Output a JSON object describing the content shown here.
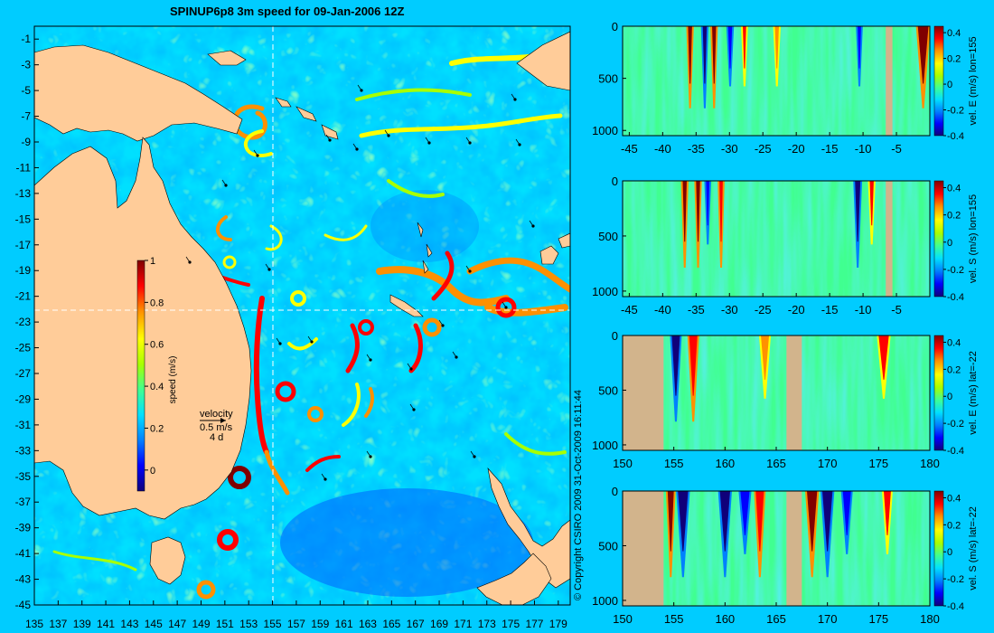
{
  "colors": {
    "background": "#00ccff",
    "land": "#ffcc99",
    "section_land": "#d2b48c",
    "colormap": [
      "#10007a",
      "#0000ff",
      "#0080ff",
      "#00e0ff",
      "#40ff90",
      "#a8ff00",
      "#ffff00",
      "#ff9000",
      "#ff0000",
      "#800000"
    ]
  },
  "map": {
    "title": "SPINUP6p8 3m speed for 09-Jan-2006 12Z",
    "xticks": [
      "135",
      "137",
      "139",
      "141",
      "143",
      "145",
      "147",
      "149",
      "151",
      "153",
      "155",
      "157",
      "159",
      "161",
      "163",
      "165",
      "167",
      "169",
      "171",
      "173",
      "175",
      "177",
      "179"
    ],
    "yticks": [
      "-1",
      "-3",
      "-5",
      "-7",
      "-9",
      "-11",
      "-13",
      "-15",
      "-17",
      "-19",
      "-21",
      "-23",
      "-25",
      "-27",
      "-29",
      "-31",
      "-33",
      "-35",
      "-37",
      "-39",
      "-41",
      "-43",
      "-45"
    ],
    "colorbar_label": "speed (m/s)",
    "colorbar_ticks": [
      "1",
      "0.8",
      "0.6",
      "0.4",
      "0.2",
      "0"
    ],
    "velocity_label": "velocity",
    "velocity_scale": "0.5 m/s",
    "velocity_days": "4 d",
    "copyright": "© Copyright CSIRO 2009    31-Oct-2009 16:11:44"
  },
  "panels": [
    {
      "ylabel": "vel. E (m/s) lon=155",
      "xticks": [
        "-45",
        "-40",
        "-35",
        "-30",
        "-25",
        "-20",
        "-15",
        "-10",
        "-5"
      ],
      "yticks": [
        "0",
        "500",
        "1000"
      ],
      "cbticks": [
        "0.4",
        "0.2",
        "0",
        "-0.2",
        "-0.4"
      ]
    },
    {
      "ylabel": "vel. S (m/s) lon=155",
      "xticks": [
        "-45",
        "-40",
        "-35",
        "-30",
        "-25",
        "-20",
        "-15",
        "-10",
        "-5"
      ],
      "yticks": [
        "0",
        "500",
        "1000"
      ],
      "cbticks": [
        "0.4",
        "0.2",
        "0",
        "-0.2",
        "-0.4"
      ]
    },
    {
      "ylabel": "vel. E (m/s) lat=-22",
      "xticks": [
        "150",
        "155",
        "160",
        "165",
        "170",
        "175",
        "180"
      ],
      "yticks": [
        "0",
        "500",
        "1000"
      ],
      "cbticks": [
        "0.4",
        "0.2",
        "0",
        "-0.2",
        "-0.4"
      ]
    },
    {
      "ylabel": "vel. S (m/s) lat=-22",
      "xticks": [
        "150",
        "155",
        "160",
        "165",
        "170",
        "175",
        "180"
      ],
      "yticks": [
        "0",
        "500",
        "1000"
      ],
      "cbticks": [
        "0.4",
        "0.2",
        "0",
        "-0.2",
        "-0.4"
      ]
    }
  ],
  "chart_data": [
    {
      "type": "heatmap",
      "title": "SPINUP6p8 3m speed for 09-Jan-2006 12Z",
      "xlabel": "",
      "ylabel": "",
      "xlim": [
        135,
        180
      ],
      "ylim": [
        -45,
        0
      ],
      "colorbar": {
        "label": "speed (m/s)",
        "range": [
          -0.1,
          1
        ]
      },
      "crosshair": {
        "lon": 155,
        "lat": -22
      },
      "velocity_key": {
        "speed": "0.5 m/s",
        "duration": "4 d"
      }
    },
    {
      "type": "heatmap",
      "ylabel": "vel. E (m/s) lon=155",
      "xlim": [
        -46,
        0
      ],
      "ylim": [
        1050,
        0
      ],
      "colorbar": {
        "range": [
          -0.4,
          0.45
        ]
      },
      "bands": [
        {
          "x": [
            -36.2,
            -35.6
          ],
          "v": 0.45
        },
        {
          "x": [
            -32.6,
            -32.0
          ],
          "v": 0.45
        },
        {
          "x": [
            -34.0,
            -33.4
          ],
          "v": -0.4
        },
        {
          "x": [
            -30.2,
            -29.6
          ],
          "v": -0.35
        },
        {
          "x": [
            -28.0,
            -27.5
          ],
          "v": 0.35
        },
        {
          "x": [
            -23.2,
            -22.6
          ],
          "v": 0.3
        },
        {
          "x": [
            -10.8,
            -10.3
          ],
          "v": -0.35
        },
        {
          "x": [
            -1.8,
            -0.2
          ],
          "v": 0.45
        }
      ],
      "land": [
        [
          -6.6,
          -5.6
        ]
      ]
    },
    {
      "type": "heatmap",
      "ylabel": "vel. S (m/s) lon=155",
      "xlim": [
        -46,
        0
      ],
      "ylim": [
        1050,
        0
      ],
      "colorbar": {
        "range": [
          -0.4,
          0.45
        ]
      },
      "bands": [
        {
          "x": [
            -37.0,
            -36.4
          ],
          "v": 0.45
        },
        {
          "x": [
            -35.0,
            -34.4
          ],
          "v": 0.45
        },
        {
          "x": [
            -33.5,
            -33.0
          ],
          "v": -0.3
        },
        {
          "x": [
            -31.5,
            -31.0
          ],
          "v": 0.4
        },
        {
          "x": [
            -11.2,
            -10.4
          ],
          "v": -0.4
        },
        {
          "x": [
            -9.0,
            -8.4
          ],
          "v": 0.35
        }
      ],
      "land": [
        [
          -6.6,
          -5.6
        ]
      ]
    },
    {
      "type": "heatmap",
      "ylabel": "vel. E (m/s) lat=-22",
      "xlim": [
        150,
        180
      ],
      "ylim": [
        1050,
        0
      ],
      "colorbar": {
        "range": [
          -0.4,
          0.45
        ]
      },
      "bands": [
        {
          "x": [
            154.8,
            155.6
          ],
          "v": -0.4
        },
        {
          "x": [
            156.5,
            157.3
          ],
          "v": 0.4
        },
        {
          "x": [
            163.5,
            164.3
          ],
          "v": 0.3
        },
        {
          "x": [
            175.0,
            176.0
          ],
          "v": 0.35
        }
      ],
      "land": [
        [
          150,
          154.0
        ],
        [
          166.0,
          167.5
        ]
      ]
    },
    {
      "type": "heatmap",
      "ylabel": "vel. S (m/s) lat=-22",
      "xlim": [
        150,
        180
      ],
      "ylim": [
        1050,
        0
      ],
      "colorbar": {
        "range": [
          -0.4,
          0.45
        ]
      },
      "bands": [
        {
          "x": [
            154.4,
            155.0
          ],
          "v": 0.45
        },
        {
          "x": [
            155.4,
            156.4
          ],
          "v": -0.4
        },
        {
          "x": [
            159.5,
            160.5
          ],
          "v": -0.4
        },
        {
          "x": [
            161.5,
            162.4
          ],
          "v": -0.35
        },
        {
          "x": [
            163.0,
            163.8
          ],
          "v": 0.4
        },
        {
          "x": [
            168.0,
            169.0
          ],
          "v": 0.45
        },
        {
          "x": [
            169.5,
            170.5
          ],
          "v": -0.4
        },
        {
          "x": [
            171.5,
            172.3
          ],
          "v": -0.35
        },
        {
          "x": [
            175.5,
            176.2
          ],
          "v": 0.35
        }
      ],
      "land": [
        [
          150,
          154.0
        ],
        [
          166.0,
          167.5
        ]
      ]
    }
  ]
}
